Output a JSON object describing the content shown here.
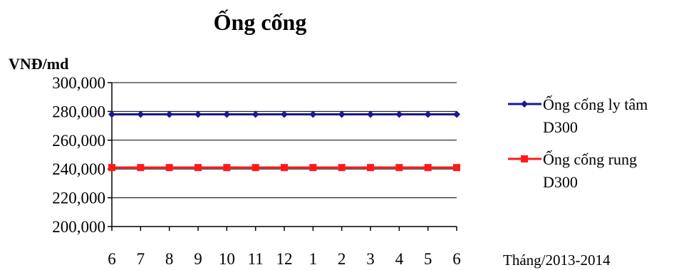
{
  "chart_data": {
    "type": "line",
    "title": "Ống cống",
    "ylabel": "VNĐ/md",
    "xlabel": "Tháng/2013-2014",
    "categories": [
      "6",
      "7",
      "8",
      "9",
      "10",
      "11",
      "12",
      "1",
      "2",
      "3",
      "4",
      "5",
      "6"
    ],
    "y_ticks": [
      "300,000",
      "280,000",
      "260,000",
      "240,000",
      "220,000",
      "200,000"
    ],
    "ylim": [
      200000,
      300000
    ],
    "grid": true,
    "legend_position": "right",
    "series": [
      {
        "name_lines": [
          "Ống cống ly tâm",
          "D300"
        ],
        "color": "#1a1a8c",
        "marker": "diamond",
        "values": [
          278000,
          278000,
          278000,
          278000,
          278000,
          278000,
          278000,
          278000,
          278000,
          278000,
          278000,
          278000,
          278000
        ]
      },
      {
        "name_lines": [
          "Ống cống rung",
          "D300"
        ],
        "color": "#ff1a1a",
        "marker": "square",
        "values": [
          241000,
          241000,
          241000,
          241000,
          241000,
          241000,
          241000,
          241000,
          241000,
          241000,
          241000,
          241000,
          241000
        ]
      }
    ]
  }
}
